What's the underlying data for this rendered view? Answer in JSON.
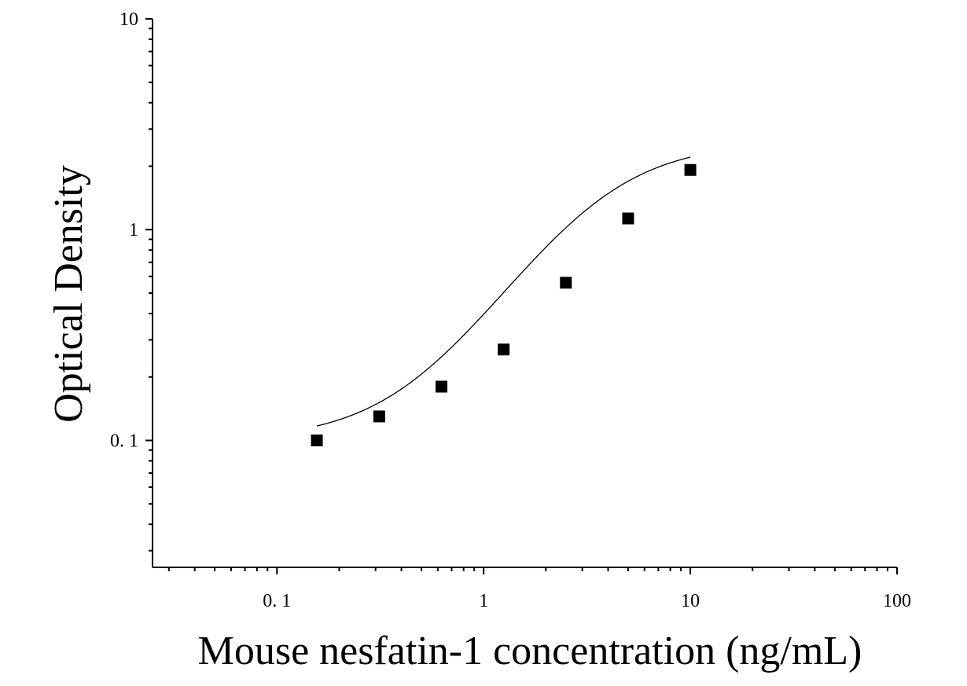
{
  "chart_data": {
    "type": "scatter",
    "title": "",
    "xlabel": "Mouse nesfatin-1 concentration (ng/mL)",
    "ylabel": "Optical Density",
    "x_scale": "log",
    "y_scale": "log",
    "xlim": [
      0.025,
      100
    ],
    "ylim": [
      0.025,
      10
    ],
    "x_ticks": [
      {
        "value": 0.1,
        "label": "0. 1"
      },
      {
        "value": 1,
        "label": "1"
      },
      {
        "value": 10,
        "label": "10"
      },
      {
        "value": 100,
        "label": "100"
      }
    ],
    "y_ticks": [
      {
        "value": 0.1,
        "label": "0. 1"
      },
      {
        "value": 1,
        "label": "1"
      },
      {
        "value": 10,
        "label": "10"
      }
    ],
    "grid": false,
    "legend": "none",
    "series": [
      {
        "marker": "square",
        "color": "#000000",
        "x": [
          0.156,
          0.3125,
          0.625,
          1.25,
          2.5,
          5,
          10
        ],
        "y": [
          0.1,
          0.13,
          0.18,
          0.27,
          0.56,
          1.13,
          1.92
        ]
      }
    ],
    "fit_curve": {
      "type": "four-parameter logistic",
      "color": "#000000",
      "A": 0.1,
      "B": 1.6,
      "C": 3.5,
      "D": 2.6
    }
  }
}
